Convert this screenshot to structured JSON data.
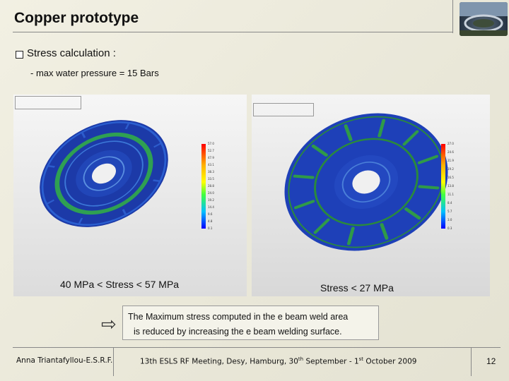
{
  "slide": {
    "title": "Copper prototype",
    "bullet": "Stress calculation :",
    "sub_point": "- max water pressure = 15 Bars",
    "note_line1": "The Maximum stress computed in the e beam weld area",
    "note_line2": "is reduced by increasing the e beam welding surface.",
    "page_number": "12"
  },
  "left_panel": {
    "caption": "40 MPa < Stress < 57 MPa",
    "legend_ticks": [
      "57.0",
      "52.7",
      "47.9",
      "43.1",
      "38.3",
      "33.5",
      "28.8",
      "24.0",
      "19.2",
      "14.4",
      "9.6",
      "4.8",
      "0.1"
    ],
    "colors": {
      "disk": "#1d3fb0",
      "ring": "#2fa052"
    }
  },
  "right_panel": {
    "caption": "Stress < 27 MPa",
    "legend_ticks": [
      "27.0",
      "24.6",
      "21.9",
      "19.2",
      "16.5",
      "13.8",
      "11.1",
      "8.4",
      "5.7",
      "3.0",
      "0.3"
    ],
    "colors": {
      "disk": "#1f3fb8",
      "ring": "#2a8a3c"
    }
  },
  "footer": {
    "author": "Anna Triantafyllou-E.S.R.F.",
    "meeting_pre": "13th ESLS RF Meeting, Desy, Hamburg, 30",
    "sup1": "th",
    "meeting_mid": " September - 1",
    "sup2": "st",
    "meeting_post": " October 2009"
  }
}
